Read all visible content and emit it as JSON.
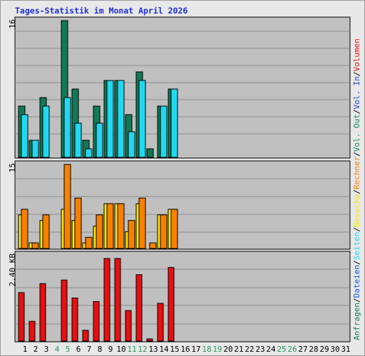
{
  "title": "Tages-Statistik im Monat April 2026",
  "colors": {
    "panel_bg": "#c0c0c0",
    "grid": "#8c8c8c",
    "anfragen": "#117a55",
    "dateien": "#0c55dc",
    "seiten": "#22d8f0",
    "besuche": "#f8e800",
    "rechner": "#f88000",
    "vol_out": "#138a50",
    "vol_in": "#1f44c8",
    "volumen": "#e81010",
    "weekend_day": "#2a9a5a",
    "weekday": "#000000",
    "separator": "#000000"
  },
  "chart_data": [
    {
      "type": "bar",
      "panel": "top",
      "y_tick_label": "16",
      "ylim": [
        0,
        16
      ],
      "categories": [
        "1",
        "2",
        "3",
        "4",
        "5",
        "6",
        "7",
        "8",
        "9",
        "10",
        "11",
        "12",
        "13",
        "14",
        "15"
      ],
      "series": [
        {
          "name": "Anfragen",
          "color_key": "anfragen",
          "values": [
            6,
            2,
            7,
            0,
            16,
            8,
            2,
            6,
            9,
            9,
            5,
            10,
            1,
            6,
            8
          ]
        },
        {
          "name": "Seiten",
          "color_key": "seiten",
          "values": [
            5,
            2,
            6,
            0,
            7,
            4,
            1,
            4,
            9,
            9,
            3,
            9,
            0,
            6,
            8
          ]
        }
      ]
    },
    {
      "type": "bar",
      "panel": "middle",
      "y_tick_label": "15",
      "ylim": [
        0,
        15
      ],
      "categories": [
        "1",
        "2",
        "3",
        "4",
        "5",
        "6",
        "7",
        "8",
        "9",
        "10",
        "11",
        "12",
        "13",
        "14",
        "15"
      ],
      "series": [
        {
          "name": "Besuche",
          "color_key": "besuche",
          "values": [
            6,
            1,
            5,
            0,
            7,
            5,
            1,
            4,
            8,
            8,
            3,
            8,
            0,
            6,
            7
          ]
        },
        {
          "name": "Rechner",
          "color_key": "rechner",
          "values": [
            7,
            1,
            6,
            0,
            15,
            9,
            2,
            6,
            8,
            8,
            5,
            9,
            1,
            6,
            7
          ]
        }
      ]
    },
    {
      "type": "bar",
      "panel": "bottom",
      "y_tick_label": "2.40 KB",
      "ylim": [
        0,
        2.4
      ],
      "categories": [
        "1",
        "2",
        "3",
        "4",
        "5",
        "6",
        "7",
        "8",
        "9",
        "10",
        "11",
        "12",
        "13",
        "14",
        "15"
      ],
      "series": [
        {
          "name": "Volumen",
          "color_key": "volumen",
          "values": [
            1.35,
            0.55,
            1.6,
            0,
            1.7,
            1.2,
            0.3,
            1.1,
            2.3,
            2.3,
            0.85,
            1.85,
            0.06,
            1.05,
            2.05
          ]
        }
      ]
    }
  ],
  "x_axis": {
    "labels": [
      "1",
      "2",
      "3",
      "4",
      "5",
      "6",
      "7",
      "8",
      "9",
      "10",
      "11",
      "12",
      "13",
      "14",
      "15",
      "16",
      "17",
      "18",
      "19",
      "20",
      "21",
      "22",
      "23",
      "24",
      "25",
      "26",
      "27",
      "28",
      "29",
      "30",
      "31"
    ],
    "weekend_days": [
      "4",
      "5",
      "11",
      "12",
      "18",
      "19",
      "25",
      "26"
    ]
  },
  "legend": [
    {
      "text": "Anfragen",
      "color_key": "anfragen"
    },
    {
      "text": "/",
      "color_key": "separator"
    },
    {
      "text": "Dateien",
      "color_key": "dateien"
    },
    {
      "text": "/",
      "color_key": "separator"
    },
    {
      "text": "Seiten",
      "color_key": "seiten"
    },
    {
      "text": "/",
      "color_key": "separator"
    },
    {
      "text": "Besuche",
      "color_key": "besuche"
    },
    {
      "text": "/",
      "color_key": "separator"
    },
    {
      "text": "Rechner",
      "color_key": "rechner"
    },
    {
      "text": "/",
      "color_key": "separator"
    },
    {
      "text": "Vol. Out",
      "color_key": "vol_out"
    },
    {
      "text": "/",
      "color_key": "separator"
    },
    {
      "text": "Vol. In",
      "color_key": "vol_in"
    },
    {
      "text": "/",
      "color_key": "separator"
    },
    {
      "text": "Volumen",
      "color_key": "volumen"
    }
  ]
}
